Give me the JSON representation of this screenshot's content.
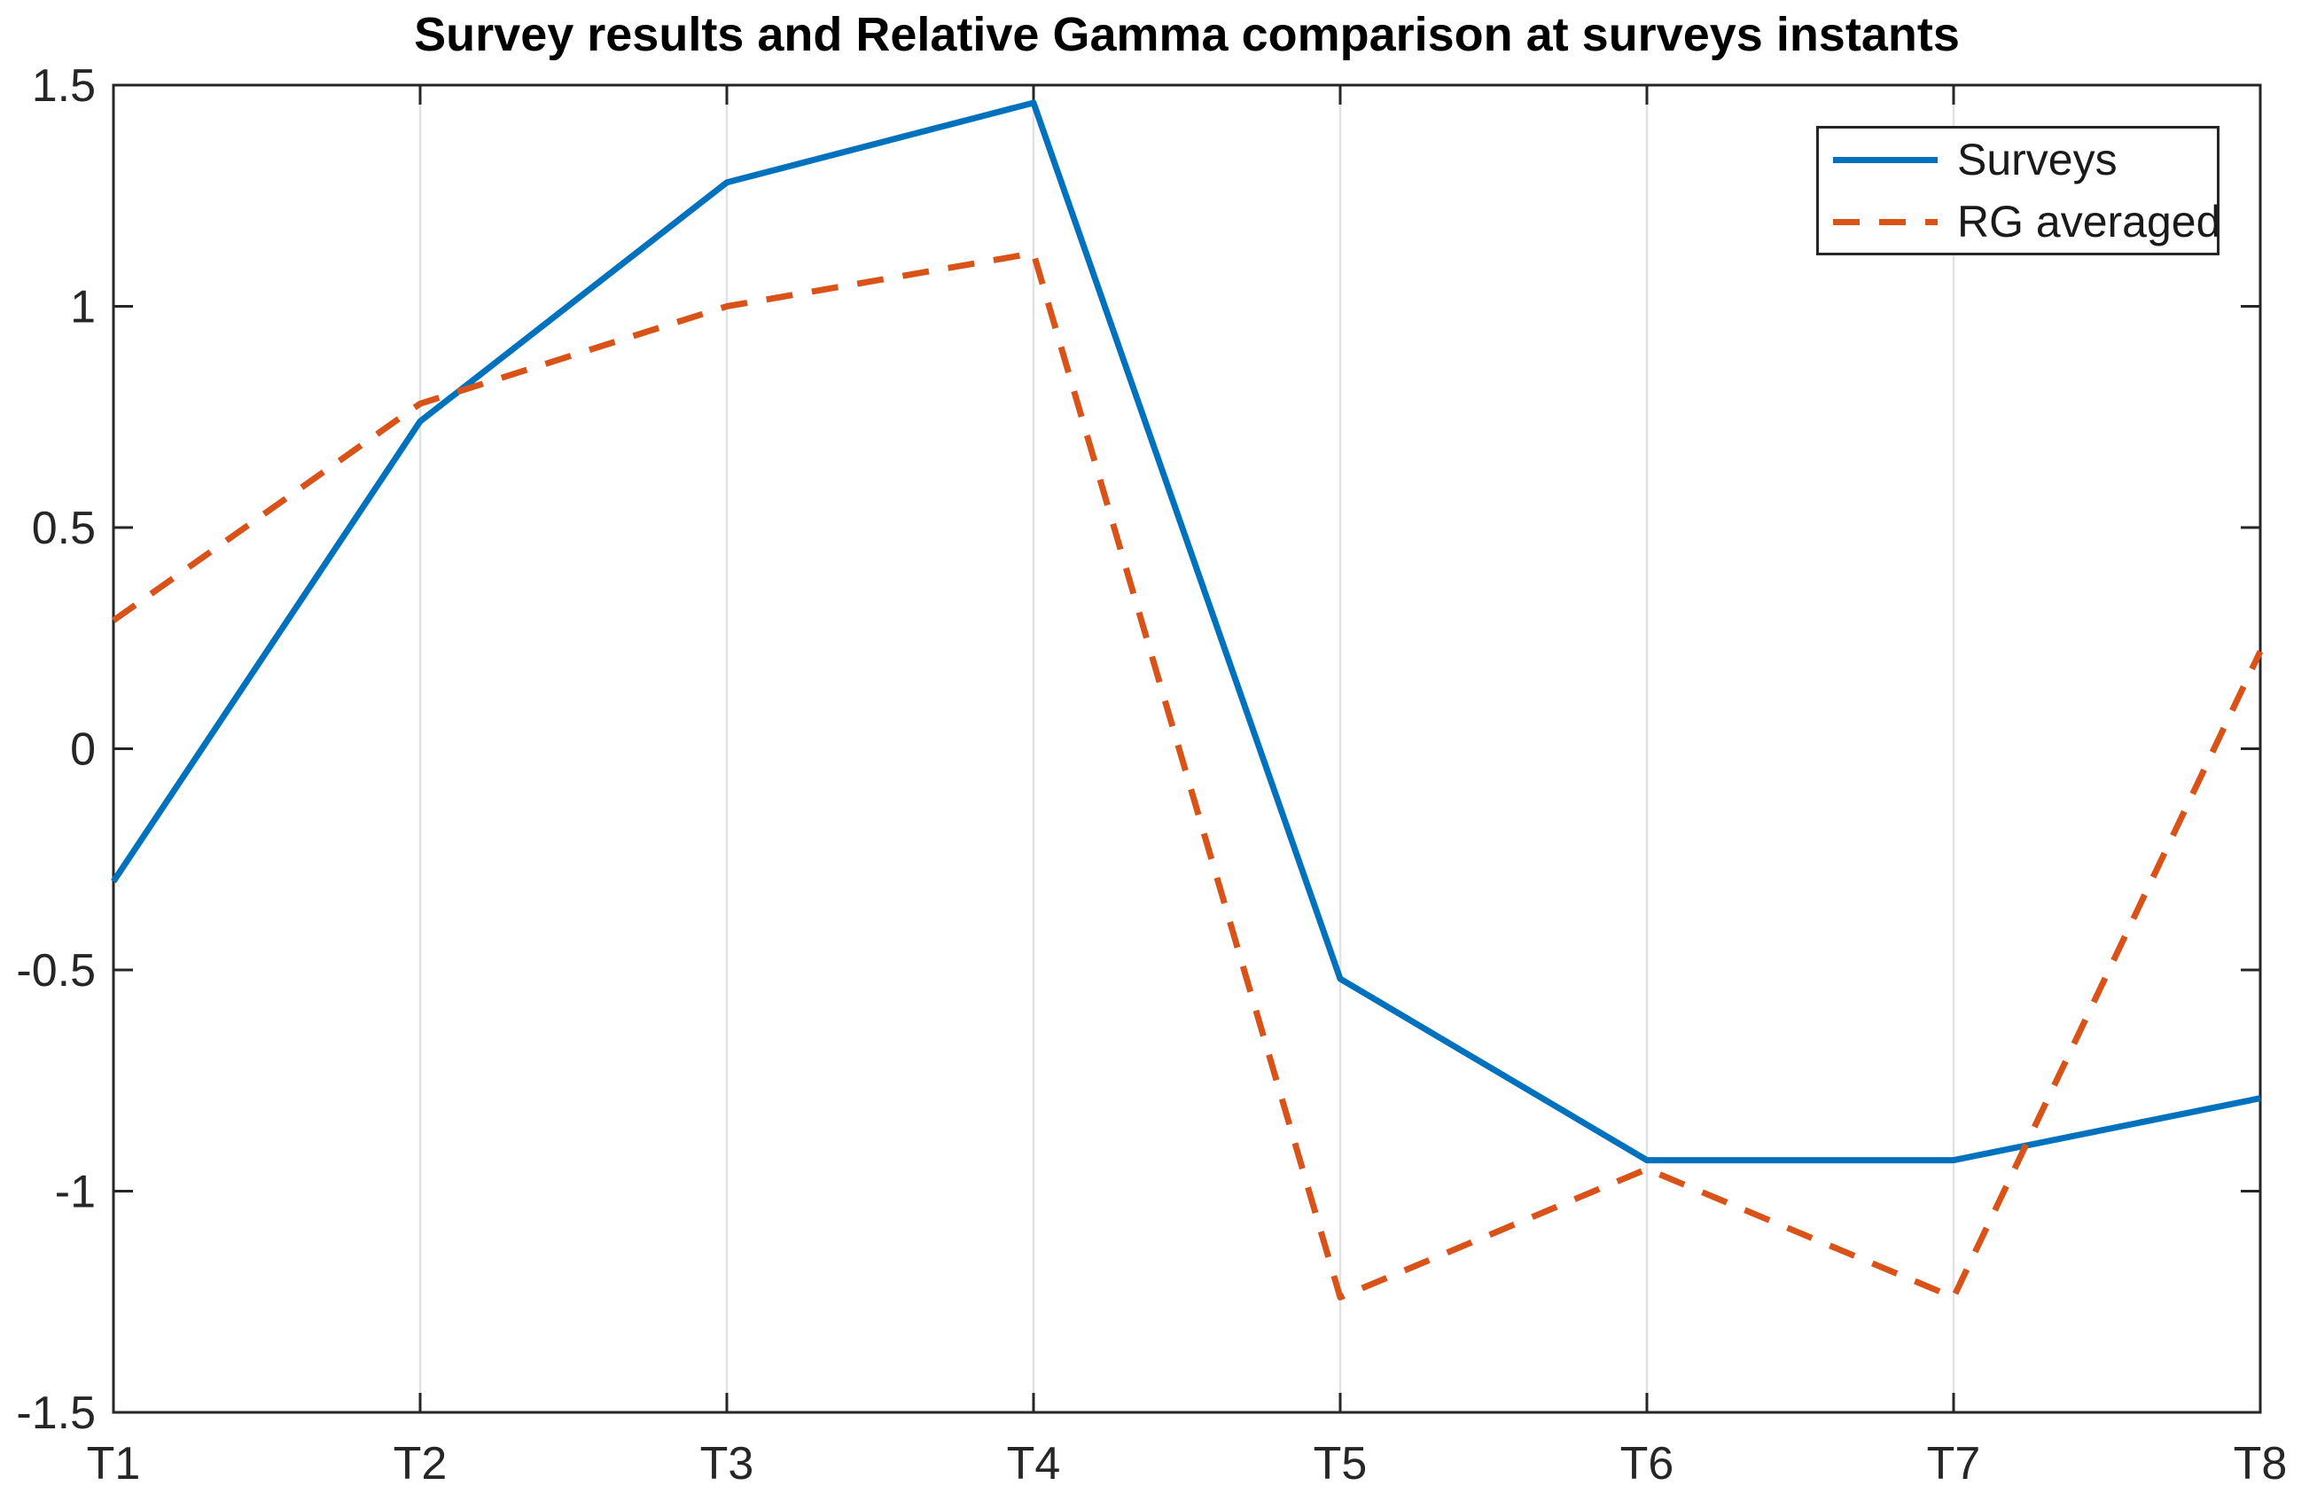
{
  "title": "Survey results and Relative Gamma comparison at surveys instants",
  "legend": {
    "position": "top-right",
    "entries": [
      {
        "label": "Surveys",
        "style": "solid",
        "color": "#0072BD"
      },
      {
        "label": "RG averaged",
        "style": "dashed",
        "color": "#D95319"
      }
    ]
  },
  "chart_data": {
    "type": "line",
    "title": "Survey results and Relative Gamma comparison at surveys instants",
    "categories": [
      "T1",
      "T2",
      "T3",
      "T4",
      "T5",
      "T6",
      "T7",
      "T8"
    ],
    "series": [
      {
        "name": "Surveys",
        "color": "#0072BD",
        "line_style": "solid",
        "values": [
          -0.3,
          0.74,
          1.28,
          1.46,
          -0.52,
          -0.93,
          -0.93,
          -0.79
        ]
      },
      {
        "name": "RG averaged",
        "color": "#D95319",
        "line_style": "dashed",
        "values": [
          0.29,
          0.78,
          1.0,
          1.12,
          -1.24,
          -0.95,
          -1.24,
          0.22
        ]
      }
    ],
    "xlabel": "",
    "ylabel": "",
    "ylim": [
      -1.5,
      1.5
    ],
    "y_ticks": [
      -1.5,
      -1,
      -0.5,
      0,
      0.5,
      1,
      1.5
    ],
    "y_tick_labels": [
      "-1.5",
      "-1",
      "-0.5",
      "0",
      "0.5",
      "1",
      "1.5"
    ],
    "grid": "vertical-only",
    "legend_position": "top-right",
    "axis_color": "#262626",
    "grid_color": "#e2e2e2",
    "tick_label_color": "#262626"
  }
}
